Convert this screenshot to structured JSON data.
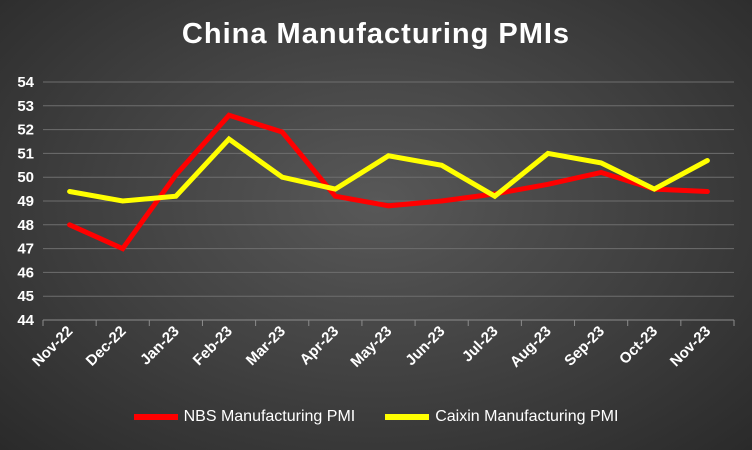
{
  "chart_data": {
    "type": "line",
    "title": "China Manufacturing PMIs",
    "categories": [
      "Nov-22",
      "Dec-22",
      "Jan-23",
      "Feb-23",
      "Mar-23",
      "Apr-23",
      "May-23",
      "Jun-23",
      "Jul-23",
      "Aug-23",
      "Sep-23",
      "Oct-23",
      "Nov-23"
    ],
    "ylim": [
      44,
      54
    ],
    "yticks": [
      44,
      45,
      46,
      47,
      48,
      49,
      50,
      51,
      52,
      53,
      54
    ],
    "grid": true,
    "legend_position": "bottom",
    "series": [
      {
        "name": "NBS Manufacturing PMI",
        "color": "#ff0000",
        "values": [
          48.0,
          47.0,
          50.1,
          52.6,
          51.9,
          49.2,
          48.8,
          49.0,
          49.3,
          49.7,
          50.2,
          49.5,
          49.4
        ]
      },
      {
        "name": "Caixin Manufacturing PMI",
        "color": "#ffff00",
        "values": [
          49.4,
          49.0,
          49.2,
          51.6,
          50.0,
          49.5,
          50.9,
          50.5,
          49.2,
          51.0,
          50.6,
          49.5,
          50.7
        ]
      }
    ]
  }
}
